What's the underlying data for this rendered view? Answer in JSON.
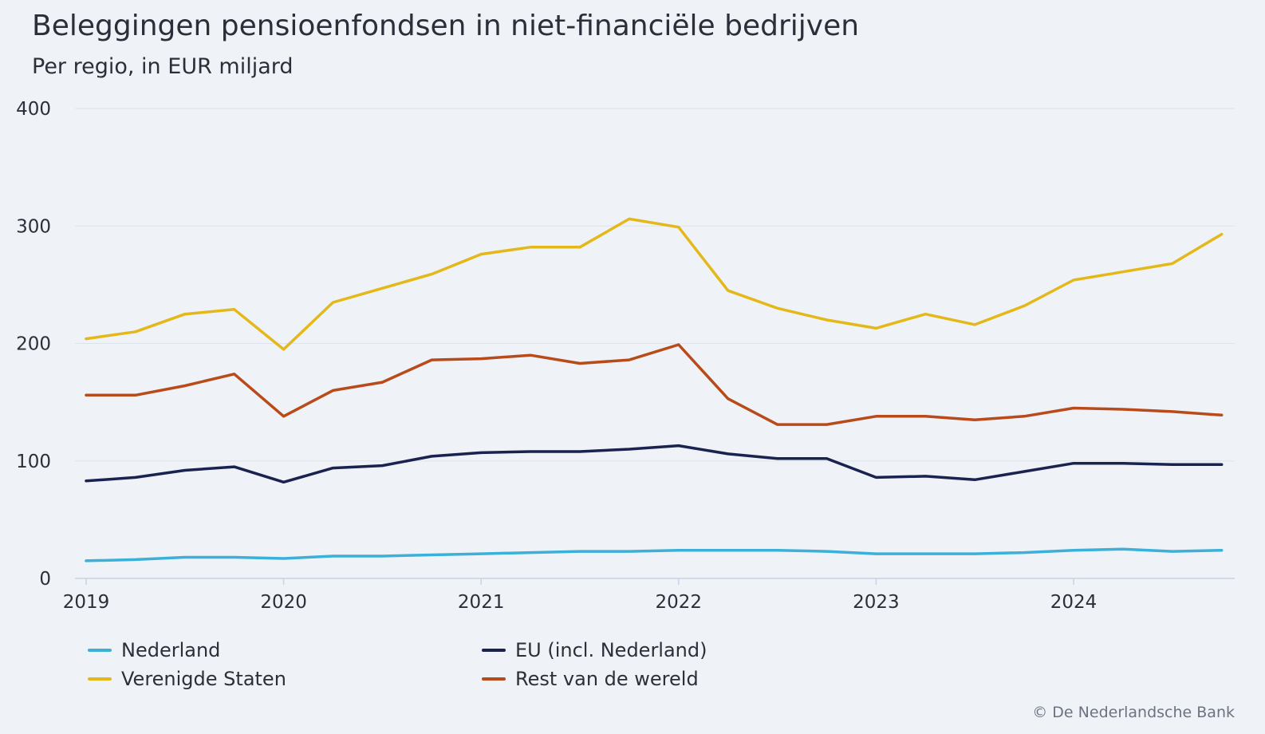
{
  "header": {
    "title": "Beleggingen pensioenfondsen in niet-financiële bedrijven",
    "subtitle": "Per regio, in EUR miljard"
  },
  "source": "© De Nederlandsche Bank",
  "chart_data": {
    "type": "line",
    "title": "Beleggingen pensioenfondsen in niet-financiële bedrijven",
    "subtitle": "Per regio, in EUR miljard",
    "xlabel": "",
    "ylabel": "",
    "ylim": [
      0,
      400
    ],
    "yticks": [
      "0",
      "100",
      "200",
      "300",
      "400"
    ],
    "xticks": [
      "2019",
      "2020",
      "2021",
      "2022",
      "2023",
      "2024"
    ],
    "grid": true,
    "legend_position": "bottom",
    "x": [
      "2019-Q1",
      "2019-Q2",
      "2019-Q3",
      "2019-Q4",
      "2020-Q1",
      "2020-Q2",
      "2020-Q3",
      "2020-Q4",
      "2021-Q1",
      "2021-Q2",
      "2021-Q3",
      "2021-Q4",
      "2022-Q1",
      "2022-Q2",
      "2022-Q3",
      "2022-Q4",
      "2023-Q1",
      "2023-Q2",
      "2023-Q3",
      "2023-Q4",
      "2024-Q1",
      "2024-Q2",
      "2024-Q3",
      "2024-Q4"
    ],
    "series": [
      {
        "name": "Nederland",
        "color": "#3bb0d8",
        "values": [
          15,
          16,
          18,
          18,
          17,
          19,
          19,
          20,
          21,
          22,
          23,
          23,
          24,
          24,
          24,
          23,
          21,
          21,
          21,
          22,
          24,
          25,
          23,
          24
        ]
      },
      {
        "name": "EU (incl. Nederland)",
        "color": "#1a2350",
        "values": [
          83,
          86,
          92,
          95,
          82,
          94,
          96,
          104,
          107,
          108,
          108,
          110,
          113,
          106,
          102,
          102,
          86,
          87,
          84,
          91,
          98,
          98,
          97,
          97
        ]
      },
      {
        "name": "Verenigde Staten",
        "color": "#e5b819",
        "values": [
          204,
          210,
          225,
          229,
          195,
          235,
          247,
          259,
          276,
          282,
          282,
          306,
          299,
          245,
          230,
          220,
          213,
          225,
          216,
          232,
          254,
          261,
          268,
          293
        ]
      },
      {
        "name": "Rest van de wereld",
        "color": "#b94a1a",
        "values": [
          156,
          156,
          164,
          174,
          138,
          160,
          167,
          186,
          187,
          190,
          183,
          186,
          199,
          153,
          131,
          131,
          138,
          138,
          135,
          138,
          145,
          144,
          142,
          139
        ]
      }
    ]
  }
}
